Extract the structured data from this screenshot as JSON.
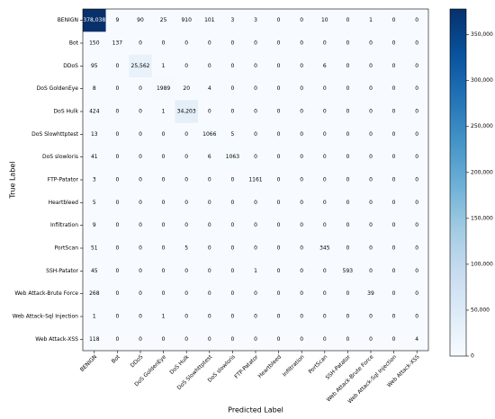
{
  "chart_data": {
    "type": "heatmap",
    "x_label": "Predicted Label",
    "y_label": "True Label",
    "categories": [
      "BENIGN",
      "Bot",
      "DDoS",
      "DoS GoldenEye",
      "DoS Hulk",
      "DoS Slowhttptest",
      "DoS slowloris",
      "FTP-Patator",
      "Heartbleed",
      "Infiltration",
      "PortScan",
      "SSH-Patator",
      "Web Attack-Brute Force",
      "Web Attack-Sql Injection",
      "Web Attack-XSS"
    ],
    "values": [
      [
        378038,
        9,
        90,
        25,
        910,
        101,
        3,
        3,
        0,
        0,
        10,
        0,
        1,
        0,
        0
      ],
      [
        150,
        137,
        0,
        0,
        0,
        0,
        0,
        0,
        0,
        0,
        0,
        0,
        0,
        0,
        0
      ],
      [
        95,
        0,
        25562,
        1,
        0,
        0,
        0,
        0,
        0,
        0,
        6,
        0,
        0,
        0,
        0
      ],
      [
        8,
        0,
        0,
        1989,
        20,
        4,
        0,
        0,
        0,
        0,
        0,
        0,
        0,
        0,
        0
      ],
      [
        424,
        0,
        0,
        1,
        34203,
        0,
        0,
        0,
        0,
        0,
        0,
        0,
        0,
        0,
        0
      ],
      [
        13,
        0,
        0,
        0,
        0,
        1066,
        5,
        0,
        0,
        0,
        0,
        0,
        0,
        0,
        0
      ],
      [
        41,
        0,
        0,
        0,
        0,
        6,
        1063,
        0,
        0,
        0,
        0,
        0,
        0,
        0,
        0
      ],
      [
        3,
        0,
        0,
        0,
        0,
        0,
        0,
        1161,
        0,
        0,
        0,
        0,
        0,
        0,
        0
      ],
      [
        5,
        0,
        0,
        0,
        0,
        0,
        0,
        0,
        0,
        0,
        0,
        0,
        0,
        0,
        0
      ],
      [
        9,
        0,
        0,
        0,
        0,
        0,
        0,
        0,
        0,
        0,
        0,
        0,
        0,
        0,
        0
      ],
      [
        51,
        0,
        0,
        0,
        5,
        0,
        0,
        0,
        0,
        0,
        345,
        0,
        0,
        0,
        0
      ],
      [
        45,
        0,
        0,
        0,
        0,
        0,
        0,
        1,
        0,
        0,
        0,
        593,
        0,
        0,
        0
      ],
      [
        268,
        0,
        0,
        0,
        0,
        0,
        0,
        0,
        0,
        0,
        0,
        0,
        39,
        0,
        0
      ],
      [
        1,
        0,
        0,
        1,
        0,
        0,
        0,
        0,
        0,
        0,
        0,
        0,
        0,
        0,
        0
      ],
      [
        118,
        0,
        0,
        0,
        0,
        0,
        0,
        0,
        0,
        0,
        0,
        0,
        0,
        0,
        4
      ]
    ],
    "value_labels": [
      [
        "378,038",
        "9",
        "90",
        "25",
        "910",
        "101",
        "3",
        "3",
        "0",
        "0",
        "10",
        "0",
        "1",
        "0",
        "0"
      ],
      [
        "150",
        "137",
        "0",
        "0",
        "0",
        "0",
        "0",
        "0",
        "0",
        "0",
        "0",
        "0",
        "0",
        "0",
        "0"
      ],
      [
        "95",
        "0",
        "25,562",
        "1",
        "0",
        "0",
        "0",
        "0",
        "0",
        "0",
        "6",
        "0",
        "0",
        "0",
        "0"
      ],
      [
        "8",
        "0",
        "0",
        "1989",
        "20",
        "4",
        "0",
        "0",
        "0",
        "0",
        "0",
        "0",
        "0",
        "0",
        "0"
      ],
      [
        "424",
        "0",
        "0",
        "1",
        "34,203",
        "0",
        "0",
        "0",
        "0",
        "0",
        "0",
        "0",
        "0",
        "0",
        "0"
      ],
      [
        "13",
        "0",
        "0",
        "0",
        "0",
        "1066",
        "5",
        "0",
        "0",
        "0",
        "0",
        "0",
        "0",
        "0",
        "0"
      ],
      [
        "41",
        "0",
        "0",
        "0",
        "0",
        "6",
        "1063",
        "0",
        "0",
        "0",
        "0",
        "0",
        "0",
        "0",
        "0"
      ],
      [
        "3",
        "0",
        "0",
        "0",
        "0",
        "0",
        "0",
        "1161",
        "0",
        "0",
        "0",
        "0",
        "0",
        "0",
        "0"
      ],
      [
        "5",
        "0",
        "0",
        "0",
        "0",
        "0",
        "0",
        "0",
        "0",
        "0",
        "0",
        "0",
        "0",
        "0",
        "0"
      ],
      [
        "9",
        "0",
        "0",
        "0",
        "0",
        "0",
        "0",
        "0",
        "0",
        "0",
        "0",
        "0",
        "0",
        "0",
        "0"
      ],
      [
        "51",
        "0",
        "0",
        "0",
        "5",
        "0",
        "0",
        "0",
        "0",
        "0",
        "345",
        "0",
        "0",
        "0",
        "0"
      ],
      [
        "45",
        "0",
        "0",
        "0",
        "0",
        "0",
        "0",
        "1",
        "0",
        "0",
        "0",
        "593",
        "0",
        "0",
        "0"
      ],
      [
        "268",
        "0",
        "0",
        "0",
        "0",
        "0",
        "0",
        "0",
        "0",
        "0",
        "0",
        "0",
        "39",
        "0",
        "0"
      ],
      [
        "1",
        "0",
        "0",
        "1",
        "0",
        "0",
        "0",
        "0",
        "0",
        "0",
        "0",
        "0",
        "0",
        "0",
        "0"
      ],
      [
        "118",
        "0",
        "0",
        "0",
        "0",
        "0",
        "0",
        "0",
        "0",
        "0",
        "0",
        "0",
        "0",
        "0",
        "4"
      ]
    ],
    "colormap": [
      "#f7fbff",
      "#deebf7",
      "#c6dbef",
      "#9ecae1",
      "#6baed6",
      "#4292c6",
      "#2171b5",
      "#08519c",
      "#08306b"
    ],
    "clim": [
      0,
      378038
    ],
    "cticks": [
      0,
      {
        "value": 50000,
        "label": "50,000"
      },
      {
        "value": 100000,
        "label": "100,000"
      },
      {
        "value": 150000,
        "label": "150,000"
      },
      {
        "value": 200000,
        "label": "200,000"
      },
      {
        "value": 250000,
        "label": "250,000"
      },
      {
        "value": 300000,
        "label": "300,000"
      },
      {
        "value": 350000,
        "label": "350,000"
      }
    ]
  }
}
